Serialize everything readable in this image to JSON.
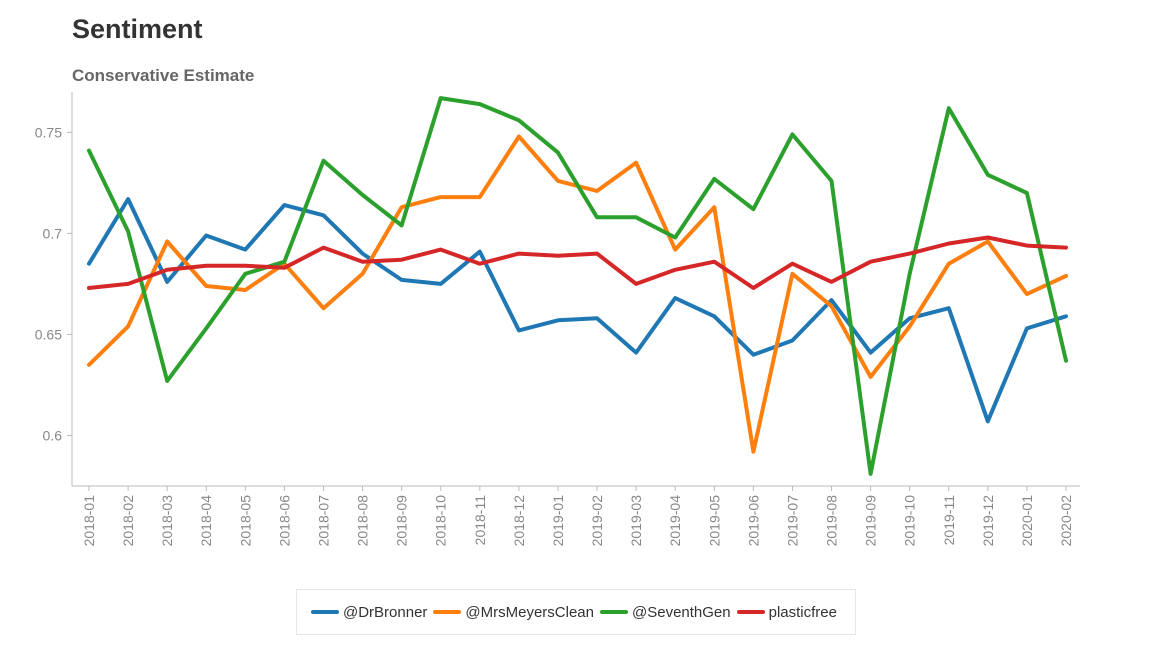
{
  "chart_data": {
    "type": "line",
    "title": "Sentiment",
    "subtitle": "Conservative Estimate",
    "xlabel": "",
    "ylabel": "",
    "ylim": [
      0.575,
      0.77
    ],
    "yticks": [
      0.6,
      0.65,
      0.7,
      0.75
    ],
    "ytick_labels": [
      "0.6",
      "0.65",
      "0.7",
      "0.75"
    ],
    "grid": false,
    "legend_position": "bottom",
    "categories": [
      "2018-01",
      "2018-02",
      "2018-03",
      "2018-04",
      "2018-05",
      "2018-06",
      "2018-07",
      "2018-08",
      "2018-09",
      "2018-10",
      "2018-11",
      "2018-12",
      "2019-01",
      "2019-02",
      "2019-03",
      "2019-04",
      "2019-05",
      "2019-06",
      "2019-07",
      "2019-08",
      "2019-09",
      "2019-10",
      "2019-11",
      "2019-12",
      "2020-01",
      "2020-02"
    ],
    "series": [
      {
        "name": "@DrBronner",
        "color": "#1f77b4",
        "values": [
          0.685,
          0.717,
          0.676,
          0.699,
          0.692,
          0.714,
          0.709,
          0.69,
          0.677,
          0.675,
          0.691,
          0.652,
          0.657,
          0.658,
          0.641,
          0.668,
          0.659,
          0.64,
          0.647,
          0.667,
          0.641,
          0.658,
          0.663,
          0.607,
          0.653,
          0.659
        ]
      },
      {
        "name": "@MrsMeyersClean",
        "color": "#ff7f0e",
        "values": [
          0.635,
          0.654,
          0.696,
          0.674,
          0.672,
          0.685,
          0.663,
          0.68,
          0.713,
          0.718,
          0.718,
          0.748,
          0.726,
          0.721,
          0.735,
          0.692,
          0.713,
          0.592,
          0.68,
          0.664,
          0.629,
          0.654,
          0.685,
          0.696,
          0.67,
          0.679
        ]
      },
      {
        "name": "@SeventhGen",
        "color": "#2ca02c",
        "values": [
          0.741,
          0.701,
          0.627,
          0.653,
          0.68,
          0.686,
          0.736,
          0.719,
          0.704,
          0.767,
          0.764,
          0.756,
          0.74,
          0.708,
          0.708,
          0.698,
          0.727,
          0.712,
          0.749,
          0.726,
          0.581,
          0.68,
          0.762,
          0.729,
          0.72,
          0.637
        ]
      },
      {
        "name": "plasticfree",
        "color": "#d62728",
        "values": [
          0.673,
          0.675,
          0.682,
          0.684,
          0.684,
          0.683,
          0.693,
          0.686,
          0.687,
          0.692,
          0.685,
          0.69,
          0.689,
          0.69,
          0.675,
          0.682,
          0.686,
          0.673,
          0.685,
          0.676,
          0.686,
          0.69,
          0.695,
          0.698,
          0.694,
          0.693
        ]
      }
    ]
  }
}
